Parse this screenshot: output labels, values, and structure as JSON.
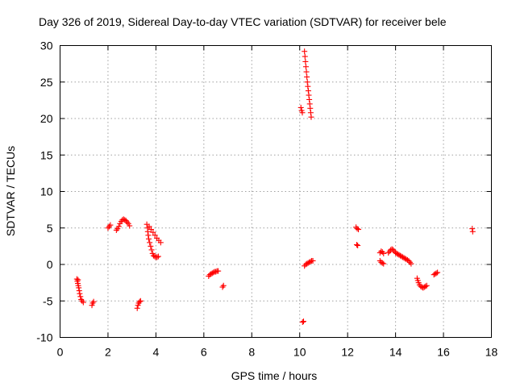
{
  "chart_data": {
    "type": "scatter",
    "title": "Day 326 of 2019, Sidereal Day-to-day VTEC variation (SDTVAR) for receiver bele",
    "xlabel": "GPS time / hours",
    "ylabel": "SDTVAR / TECUs",
    "xlim": [
      0,
      18
    ],
    "ylim": [
      -10,
      30
    ],
    "xticks": [
      0,
      2,
      4,
      6,
      8,
      10,
      12,
      14,
      16,
      18
    ],
    "yticks": [
      -10,
      -5,
      0,
      5,
      10,
      15,
      20,
      25,
      30
    ],
    "grid": true,
    "marker": "+",
    "color": "#ff0000",
    "series": [
      {
        "name": "SDTVAR",
        "points": [
          [
            0.7,
            -2.0
          ],
          [
            0.72,
            -2.3
          ],
          [
            0.74,
            -2.6
          ],
          [
            0.76,
            -2.9
          ],
          [
            0.78,
            -3.2
          ],
          [
            0.75,
            -2.1
          ],
          [
            0.8,
            -3.6
          ],
          [
            0.82,
            -4.0
          ],
          [
            0.85,
            -4.4
          ],
          [
            0.88,
            -4.8
          ],
          [
            0.92,
            -5.0
          ],
          [
            0.97,
            -5.2
          ],
          [
            1.33,
            -5.6
          ],
          [
            1.36,
            -5.3
          ],
          [
            1.4,
            -5.1
          ],
          [
            2.0,
            5.0
          ],
          [
            2.05,
            5.2
          ],
          [
            2.1,
            5.4
          ],
          [
            2.35,
            4.7
          ],
          [
            2.4,
            4.9
          ],
          [
            2.45,
            5.2
          ],
          [
            2.5,
            5.6
          ],
          [
            2.55,
            5.9
          ],
          [
            2.6,
            6.1
          ],
          [
            2.65,
            6.2
          ],
          [
            2.7,
            6.1
          ],
          [
            2.75,
            6.0
          ],
          [
            2.8,
            5.8
          ],
          [
            2.85,
            5.6
          ],
          [
            2.9,
            5.3
          ],
          [
            3.22,
            -6.0
          ],
          [
            3.25,
            -5.6
          ],
          [
            3.28,
            -5.3
          ],
          [
            3.32,
            -5.1
          ],
          [
            3.36,
            -5.0
          ],
          [
            3.62,
            5.5
          ],
          [
            3.65,
            5.0
          ],
          [
            3.66,
            4.5
          ],
          [
            3.68,
            4.0
          ],
          [
            3.7,
            3.5
          ],
          [
            3.74,
            3.0
          ],
          [
            3.78,
            2.5
          ],
          [
            3.82,
            2.0
          ],
          [
            3.86,
            1.5
          ],
          [
            3.9,
            1.2
          ],
          [
            3.95,
            1.1
          ],
          [
            4.0,
            1.0
          ],
          [
            4.05,
            1.0
          ],
          [
            4.1,
            1.1
          ],
          [
            3.72,
            5.2
          ],
          [
            3.8,
            4.8
          ],
          [
            3.88,
            4.4
          ],
          [
            3.96,
            4.0
          ],
          [
            4.04,
            3.6
          ],
          [
            4.12,
            3.3
          ],
          [
            4.2,
            3.0
          ],
          [
            6.2,
            -1.6
          ],
          [
            6.25,
            -1.4
          ],
          [
            6.3,
            -1.3
          ],
          [
            6.35,
            -1.2
          ],
          [
            6.4,
            -1.1
          ],
          [
            6.45,
            -1.0
          ],
          [
            6.5,
            -1.0
          ],
          [
            6.55,
            -0.9
          ],
          [
            6.6,
            -0.9
          ],
          [
            6.78,
            -3.1
          ],
          [
            6.82,
            -2.9
          ],
          [
            10.05,
            21.5
          ],
          [
            10.08,
            21.1
          ],
          [
            10.11,
            20.8
          ],
          [
            10.2,
            29.2
          ],
          [
            10.22,
            28.5
          ],
          [
            10.24,
            27.8
          ],
          [
            10.26,
            27.1
          ],
          [
            10.28,
            26.4
          ],
          [
            10.3,
            25.7
          ],
          [
            10.32,
            25.0
          ],
          [
            10.34,
            24.4
          ],
          [
            10.36,
            23.8
          ],
          [
            10.38,
            23.2
          ],
          [
            10.4,
            22.6
          ],
          [
            10.42,
            22.0
          ],
          [
            10.44,
            21.4
          ],
          [
            10.46,
            20.8
          ],
          [
            10.48,
            20.2
          ],
          [
            10.12,
            -7.9
          ],
          [
            10.16,
            -7.8
          ],
          [
            10.2,
            -0.2
          ],
          [
            10.25,
            0.0
          ],
          [
            10.3,
            0.1
          ],
          [
            10.35,
            0.2
          ],
          [
            10.4,
            0.3
          ],
          [
            10.45,
            0.4
          ],
          [
            10.5,
            0.5
          ],
          [
            10.55,
            0.5
          ],
          [
            12.35,
            5.1
          ],
          [
            12.4,
            4.9
          ],
          [
            12.45,
            4.8
          ],
          [
            12.38,
            2.7
          ],
          [
            12.42,
            2.6
          ],
          [
            13.35,
            0.5
          ],
          [
            13.4,
            0.3
          ],
          [
            13.45,
            0.2
          ],
          [
            13.5,
            0.1
          ],
          [
            13.35,
            1.6
          ],
          [
            13.4,
            1.8
          ],
          [
            13.45,
            1.7
          ],
          [
            13.5,
            1.5
          ],
          [
            13.7,
            1.6
          ],
          [
            13.75,
            1.8
          ],
          [
            13.8,
            2.0
          ],
          [
            13.85,
            2.1
          ],
          [
            13.9,
            2.0
          ],
          [
            13.95,
            1.8
          ],
          [
            14.0,
            1.6
          ],
          [
            14.05,
            1.5
          ],
          [
            14.1,
            1.4
          ],
          [
            14.15,
            1.3
          ],
          [
            14.2,
            1.2
          ],
          [
            14.25,
            1.1
          ],
          [
            14.3,
            1.0
          ],
          [
            14.35,
            0.9
          ],
          [
            14.4,
            0.8
          ],
          [
            14.45,
            0.7
          ],
          [
            14.5,
            0.6
          ],
          [
            14.55,
            0.5
          ],
          [
            14.6,
            0.3
          ],
          [
            14.65,
            0.1
          ],
          [
            14.9,
            -1.9
          ],
          [
            14.93,
            -2.2
          ],
          [
            14.96,
            -2.5
          ],
          [
            15.0,
            -2.8
          ],
          [
            15.05,
            -3.0
          ],
          [
            15.1,
            -3.1
          ],
          [
            15.15,
            -3.2
          ],
          [
            15.2,
            -3.1
          ],
          [
            15.25,
            -3.0
          ],
          [
            15.3,
            -2.9
          ],
          [
            15.6,
            -1.4
          ],
          [
            15.65,
            -1.3
          ],
          [
            15.7,
            -1.2
          ],
          [
            15.75,
            -1.1
          ],
          [
            17.2,
            4.9
          ],
          [
            17.22,
            4.5
          ]
        ]
      }
    ]
  }
}
